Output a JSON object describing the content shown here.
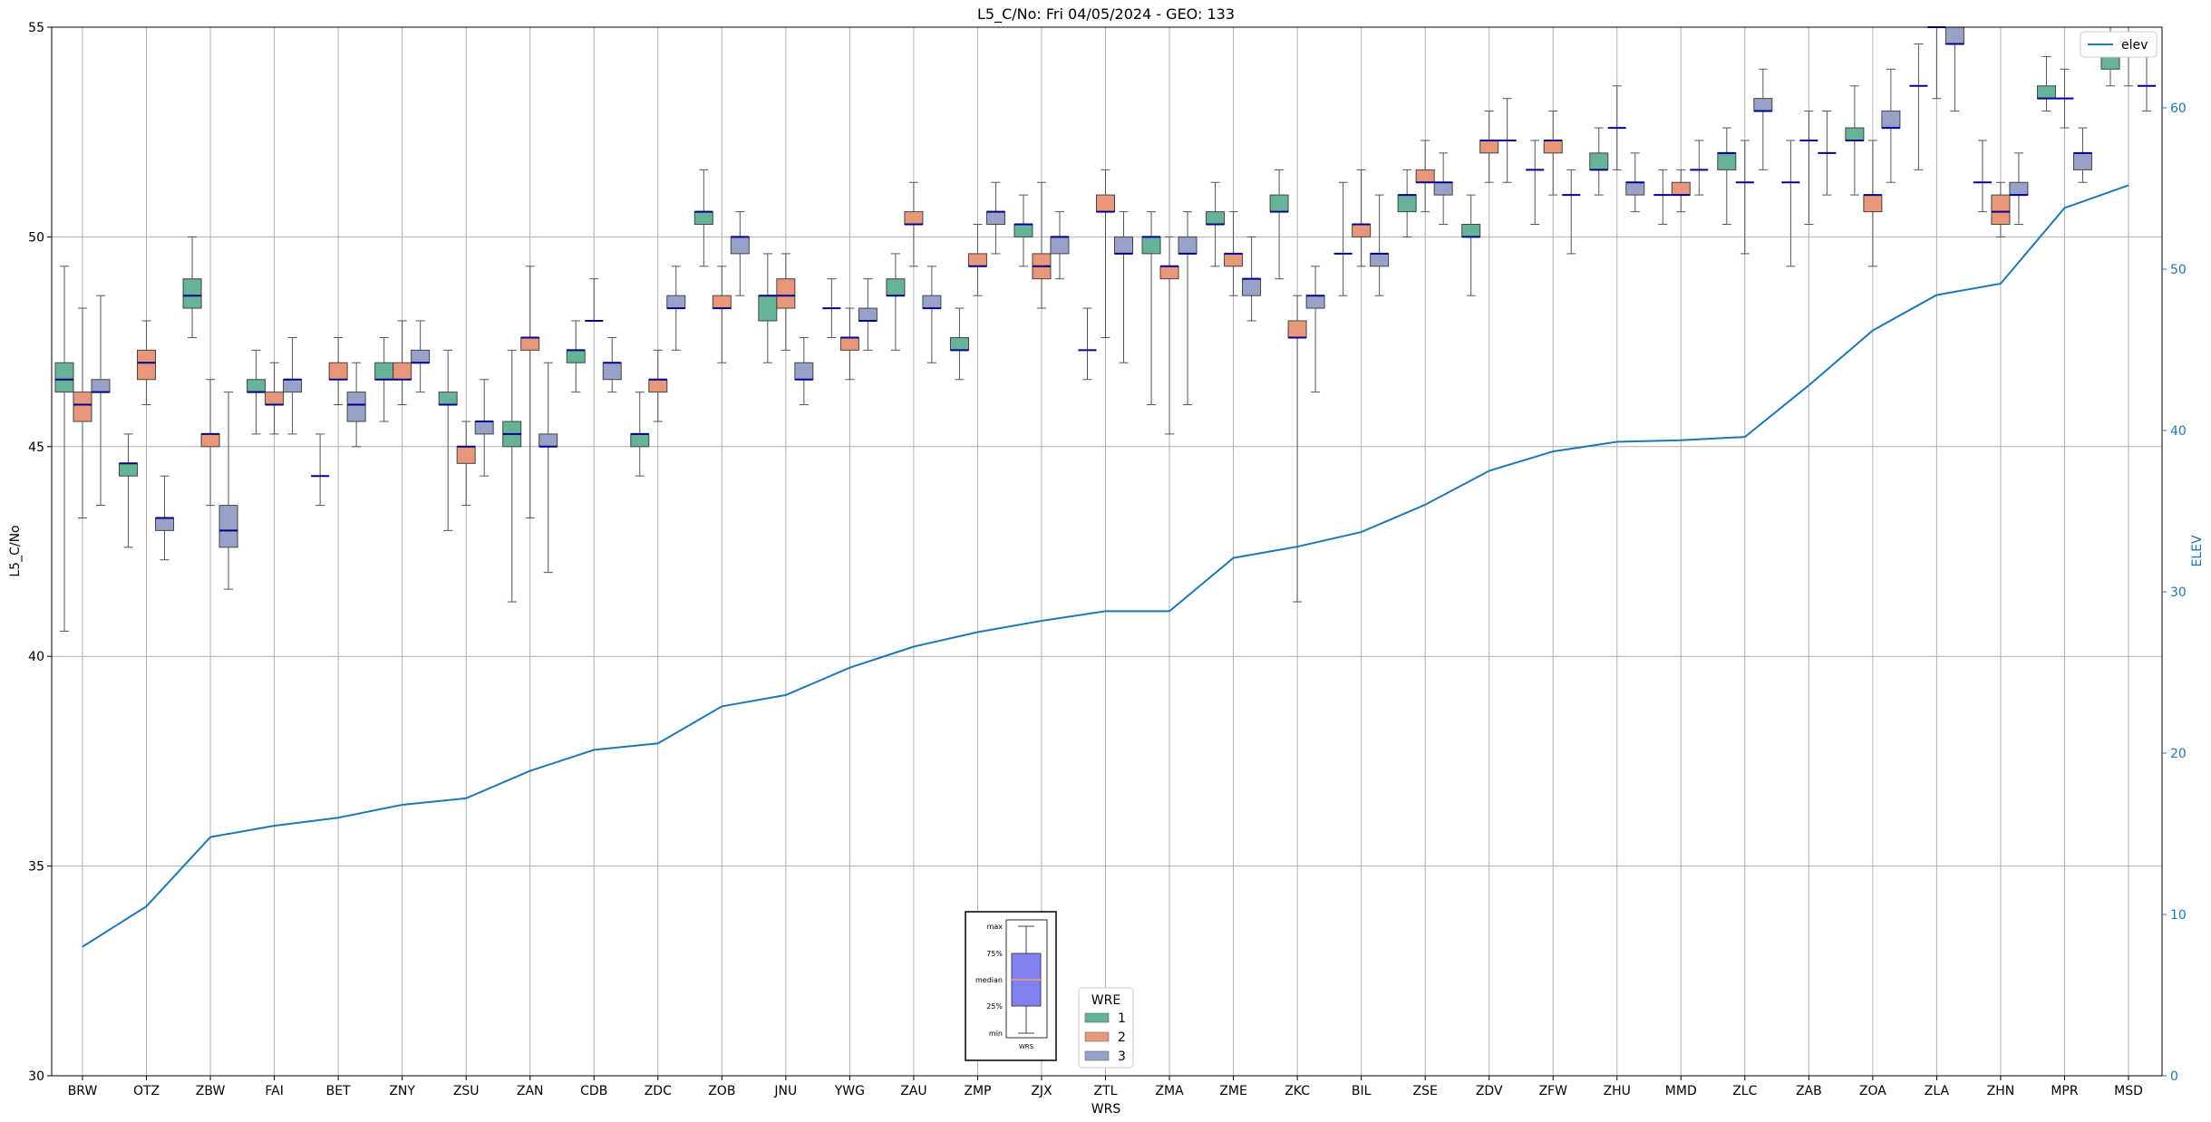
{
  "chart_data": {
    "type": "box",
    "title": "L5_C/No: Fri 04/05/2024 - GEO: 133",
    "xlabel": "WRS",
    "ylabel": "L5_C/No",
    "y2label": "ELEV",
    "ylim": [
      30,
      55
    ],
    "y2lim": [
      0,
      65
    ],
    "yticks": [
      30,
      35,
      40,
      45,
      50,
      55
    ],
    "y2ticks": [
      0,
      10,
      20,
      30,
      40,
      50,
      60
    ],
    "grid": true,
    "categories": [
      "BRW",
      "OTZ",
      "ZBW",
      "FAI",
      "BET",
      "ZNY",
      "ZSU",
      "ZAN",
      "CDB",
      "ZDC",
      "ZOB",
      "JNU",
      "YWG",
      "ZAU",
      "ZMP",
      "ZJX",
      "ZTL",
      "ZMA",
      "ZME",
      "ZKC",
      "BIL",
      "ZSE",
      "ZDV",
      "ZFW",
      "ZHU",
      "MMD",
      "ZLC",
      "ZAB",
      "ZOA",
      "ZLA",
      "ZHN",
      "MPR",
      "MSD"
    ],
    "legend": {
      "title": "WRE",
      "position": "bottom-center",
      "entries": [
        {
          "label": "1",
          "color": "#66b39a"
        },
        {
          "label": "2",
          "color": "#e8977a"
        },
        {
          "label": "3",
          "color": "#98a2c8"
        }
      ]
    },
    "elev_legend": {
      "label": "elev",
      "color": "#1f77b4",
      "position": "top-right"
    },
    "key_inset": {
      "labels": [
        "max",
        "75%",
        "median",
        "25%",
        "min"
      ],
      "caption": "WRS",
      "fill": "#8080f0"
    },
    "median_color": "#00008b",
    "elev_series": {
      "name": "elev",
      "color": "#1f77b4",
      "values": [
        8,
        10.5,
        14.8,
        15.5,
        16,
        16.8,
        17.2,
        18.9,
        20.2,
        20.6,
        22.9,
        23.6,
        25.3,
        26.6,
        27.5,
        28.2,
        28.8,
        28.8,
        32.1,
        32.8,
        33.7,
        35.4,
        37.5,
        38.7,
        39.3,
        39.4,
        39.6,
        42.8,
        46.2,
        48.4,
        49.1,
        53.8,
        55.2
      ]
    },
    "boxes": [
      {
        "wrs": "BRW",
        "wre": 1,
        "min": 40.6,
        "q1": 46.3,
        "median": 46.6,
        "q3": 47.0,
        "max": 49.3
      },
      {
        "wrs": "BRW",
        "wre": 2,
        "min": 43.3,
        "q1": 45.6,
        "median": 46.0,
        "q3": 46.3,
        "max": 48.3
      },
      {
        "wrs": "BRW",
        "wre": 3,
        "min": 43.6,
        "q1": 46.3,
        "median": 46.3,
        "q3": 46.6,
        "max": 48.6
      },
      {
        "wrs": "OTZ",
        "wre": 1,
        "min": 42.6,
        "q1": 44.3,
        "median": 44.6,
        "q3": 44.6,
        "max": 45.3
      },
      {
        "wrs": "OTZ",
        "wre": 2,
        "min": 46.0,
        "q1": 46.6,
        "median": 47.0,
        "q3": 47.3,
        "max": 48.0
      },
      {
        "wrs": "OTZ",
        "wre": 3,
        "min": 42.3,
        "q1": 43.0,
        "median": 43.3,
        "q3": 43.3,
        "max": 44.3
      },
      {
        "wrs": "ZBW",
        "wre": 1,
        "min": 47.6,
        "q1": 48.3,
        "median": 48.6,
        "q3": 49.0,
        "max": 50.0
      },
      {
        "wrs": "ZBW",
        "wre": 2,
        "min": 43.6,
        "q1": 45.0,
        "median": 45.3,
        "q3": 45.3,
        "max": 46.6
      },
      {
        "wrs": "ZBW",
        "wre": 3,
        "min": 41.6,
        "q1": 42.6,
        "median": 43.0,
        "q3": 43.6,
        "max": 46.3
      },
      {
        "wrs": "FAI",
        "wre": 1,
        "min": 45.3,
        "q1": 46.3,
        "median": 46.3,
        "q3": 46.6,
        "max": 47.3
      },
      {
        "wrs": "FAI",
        "wre": 2,
        "min": 45.3,
        "q1": 46.0,
        "median": 46.0,
        "q3": 46.3,
        "max": 47.0
      },
      {
        "wrs": "FAI",
        "wre": 3,
        "min": 45.3,
        "q1": 46.3,
        "median": 46.6,
        "q3": 46.6,
        "max": 47.6
      },
      {
        "wrs": "BET",
        "wre": 1,
        "min": 43.6,
        "q1": 44.3,
        "median": 44.3,
        "q3": 44.3,
        "max": 45.3
      },
      {
        "wrs": "BET",
        "wre": 2,
        "min": 46.0,
        "q1": 46.6,
        "median": 46.6,
        "q3": 47.0,
        "max": 47.6
      },
      {
        "wrs": "BET",
        "wre": 3,
        "min": 45.0,
        "q1": 45.6,
        "median": 46.0,
        "q3": 46.3,
        "max": 47.0
      },
      {
        "wrs": "ZNY",
        "wre": 1,
        "min": 45.6,
        "q1": 46.6,
        "median": 46.6,
        "q3": 47.0,
        "max": 47.6
      },
      {
        "wrs": "ZNY",
        "wre": 2,
        "min": 46.0,
        "q1": 46.6,
        "median": 46.6,
        "q3": 47.0,
        "max": 48.0
      },
      {
        "wrs": "ZNY",
        "wre": 3,
        "min": 46.3,
        "q1": 47.0,
        "median": 47.0,
        "q3": 47.3,
        "max": 48.0
      },
      {
        "wrs": "ZSU",
        "wre": 1,
        "min": 43.0,
        "q1": 46.0,
        "median": 46.0,
        "q3": 46.3,
        "max": 47.3
      },
      {
        "wrs": "ZSU",
        "wre": 2,
        "min": 43.6,
        "q1": 44.6,
        "median": 45.0,
        "q3": 45.0,
        "max": 45.6
      },
      {
        "wrs": "ZSU",
        "wre": 3,
        "min": 44.3,
        "q1": 45.3,
        "median": 45.6,
        "q3": 45.6,
        "max": 46.6
      },
      {
        "wrs": "ZAN",
        "wre": 1,
        "min": 41.3,
        "q1": 45.0,
        "median": 45.3,
        "q3": 45.6,
        "max": 47.3
      },
      {
        "wrs": "ZAN",
        "wre": 2,
        "min": 43.3,
        "q1": 47.3,
        "median": 47.6,
        "q3": 47.6,
        "max": 49.3
      },
      {
        "wrs": "ZAN",
        "wre": 3,
        "min": 42.0,
        "q1": 45.0,
        "median": 45.0,
        "q3": 45.3,
        "max": 47.0
      },
      {
        "wrs": "CDB",
        "wre": 1,
        "min": 46.3,
        "q1": 47.0,
        "median": 47.3,
        "q3": 47.3,
        "max": 48.0
      },
      {
        "wrs": "CDB",
        "wre": 2,
        "min": 48.0,
        "q1": 48.0,
        "median": 48.0,
        "q3": 48.0,
        "max": 49.0
      },
      {
        "wrs": "CDB",
        "wre": 3,
        "min": 46.3,
        "q1": 46.6,
        "median": 47.0,
        "q3": 47.0,
        "max": 47.6
      },
      {
        "wrs": "ZDC",
        "wre": 1,
        "min": 44.3,
        "q1": 45.0,
        "median": 45.3,
        "q3": 45.3,
        "max": 46.3
      },
      {
        "wrs": "ZDC",
        "wre": 2,
        "min": 45.6,
        "q1": 46.3,
        "median": 46.6,
        "q3": 46.6,
        "max": 47.3
      },
      {
        "wrs": "ZDC",
        "wre": 3,
        "min": 47.3,
        "q1": 48.3,
        "median": 48.3,
        "q3": 48.6,
        "max": 49.3
      },
      {
        "wrs": "ZOB",
        "wre": 1,
        "min": 49.3,
        "q1": 50.3,
        "median": 50.6,
        "q3": 50.6,
        "max": 51.6
      },
      {
        "wrs": "ZOB",
        "wre": 2,
        "min": 47.0,
        "q1": 48.3,
        "median": 48.3,
        "q3": 48.6,
        "max": 49.3
      },
      {
        "wrs": "ZOB",
        "wre": 3,
        "min": 48.6,
        "q1": 49.6,
        "median": 50.0,
        "q3": 50.0,
        "max": 50.6
      },
      {
        "wrs": "JNU",
        "wre": 1,
        "min": 47.0,
        "q1": 48.0,
        "median": 48.6,
        "q3": 48.6,
        "max": 49.6
      },
      {
        "wrs": "JNU",
        "wre": 2,
        "min": 47.3,
        "q1": 48.3,
        "median": 48.6,
        "q3": 49.0,
        "max": 49.6
      },
      {
        "wrs": "JNU",
        "wre": 3,
        "min": 46.0,
        "q1": 46.6,
        "median": 46.6,
        "q3": 47.0,
        "max": 47.6
      },
      {
        "wrs": "YWG",
        "wre": 1,
        "min": 47.6,
        "q1": 48.3,
        "median": 48.3,
        "q3": 48.3,
        "max": 49.0
      },
      {
        "wrs": "YWG",
        "wre": 2,
        "min": 46.6,
        "q1": 47.3,
        "median": 47.6,
        "q3": 47.6,
        "max": 48.3
      },
      {
        "wrs": "YWG",
        "wre": 3,
        "min": 47.3,
        "q1": 48.0,
        "median": 48.0,
        "q3": 48.3,
        "max": 49.0
      },
      {
        "wrs": "ZAU",
        "wre": 1,
        "min": 47.3,
        "q1": 48.6,
        "median": 48.6,
        "q3": 49.0,
        "max": 49.6
      },
      {
        "wrs": "ZAU",
        "wre": 2,
        "min": 49.3,
        "q1": 50.3,
        "median": 50.3,
        "q3": 50.6,
        "max": 51.3
      },
      {
        "wrs": "ZAU",
        "wre": 3,
        "min": 47.0,
        "q1": 48.3,
        "median": 48.3,
        "q3": 48.6,
        "max": 49.3
      },
      {
        "wrs": "ZMP",
        "wre": 1,
        "min": 46.6,
        "q1": 47.3,
        "median": 47.3,
        "q3": 47.6,
        "max": 48.3
      },
      {
        "wrs": "ZMP",
        "wre": 2,
        "min": 48.6,
        "q1": 49.3,
        "median": 49.3,
        "q3": 49.6,
        "max": 50.3
      },
      {
        "wrs": "ZMP",
        "wre": 3,
        "min": 49.6,
        "q1": 50.3,
        "median": 50.6,
        "q3": 50.6,
        "max": 51.3
      },
      {
        "wrs": "ZJX",
        "wre": 1,
        "min": 49.3,
        "q1": 50.0,
        "median": 50.3,
        "q3": 50.3,
        "max": 51.0
      },
      {
        "wrs": "ZJX",
        "wre": 2,
        "min": 48.3,
        "q1": 49.0,
        "median": 49.3,
        "q3": 49.6,
        "max": 51.3
      },
      {
        "wrs": "ZJX",
        "wre": 3,
        "min": 49.0,
        "q1": 49.6,
        "median": 50.0,
        "q3": 50.0,
        "max": 50.6
      },
      {
        "wrs": "ZTL",
        "wre": 1,
        "min": 46.6,
        "q1": 47.3,
        "median": 47.3,
        "q3": 47.3,
        "max": 48.3
      },
      {
        "wrs": "ZTL",
        "wre": 2,
        "min": 47.6,
        "q1": 50.6,
        "median": 50.6,
        "q3": 51.0,
        "max": 51.6
      },
      {
        "wrs": "ZTL",
        "wre": 3,
        "min": 47.0,
        "q1": 49.6,
        "median": 49.6,
        "q3": 50.0,
        "max": 50.6
      },
      {
        "wrs": "ZMA",
        "wre": 1,
        "min": 46.0,
        "q1": 49.6,
        "median": 50.0,
        "q3": 50.0,
        "max": 50.6
      },
      {
        "wrs": "ZMA",
        "wre": 2,
        "min": 45.3,
        "q1": 49.0,
        "median": 49.3,
        "q3": 49.3,
        "max": 50.0
      },
      {
        "wrs": "ZMA",
        "wre": 3,
        "min": 46.0,
        "q1": 49.6,
        "median": 49.6,
        "q3": 50.0,
        "max": 50.6
      },
      {
        "wrs": "ZME",
        "wre": 1,
        "min": 49.3,
        "q1": 50.3,
        "median": 50.3,
        "q3": 50.6,
        "max": 51.3
      },
      {
        "wrs": "ZME",
        "wre": 2,
        "min": 48.6,
        "q1": 49.3,
        "median": 49.6,
        "q3": 49.6,
        "max": 50.6
      },
      {
        "wrs": "ZME",
        "wre": 3,
        "min": 48.0,
        "q1": 48.6,
        "median": 49.0,
        "q3": 49.0,
        "max": 50.0
      },
      {
        "wrs": "ZKC",
        "wre": 1,
        "min": 49.0,
        "q1": 50.6,
        "median": 50.6,
        "q3": 51.0,
        "max": 51.6
      },
      {
        "wrs": "ZKC",
        "wre": 2,
        "min": 41.3,
        "q1": 47.6,
        "median": 47.6,
        "q3": 48.0,
        "max": 48.6
      },
      {
        "wrs": "ZKC",
        "wre": 3,
        "min": 46.3,
        "q1": 48.3,
        "median": 48.6,
        "q3": 48.6,
        "max": 49.3
      },
      {
        "wrs": "BIL",
        "wre": 1,
        "min": 48.6,
        "q1": 49.6,
        "median": 49.6,
        "q3": 49.6,
        "max": 51.3
      },
      {
        "wrs": "BIL",
        "wre": 2,
        "min": 49.3,
        "q1": 50.0,
        "median": 50.3,
        "q3": 50.3,
        "max": 51.6
      },
      {
        "wrs": "BIL",
        "wre": 3,
        "min": 48.6,
        "q1": 49.3,
        "median": 49.6,
        "q3": 49.6,
        "max": 51.0
      },
      {
        "wrs": "ZSE",
        "wre": 1,
        "min": 50.0,
        "q1": 50.6,
        "median": 51.0,
        "q3": 51.0,
        "max": 51.6
      },
      {
        "wrs": "ZSE",
        "wre": 2,
        "min": 50.6,
        "q1": 51.3,
        "median": 51.3,
        "q3": 51.6,
        "max": 52.3
      },
      {
        "wrs": "ZSE",
        "wre": 3,
        "min": 50.3,
        "q1": 51.0,
        "median": 51.3,
        "q3": 51.3,
        "max": 52.0
      },
      {
        "wrs": "ZDV",
        "wre": 1,
        "min": 48.6,
        "q1": 50.0,
        "median": 50.0,
        "q3": 50.3,
        "max": 51.0
      },
      {
        "wrs": "ZDV",
        "wre": 2,
        "min": 51.3,
        "q1": 52.0,
        "median": 52.3,
        "q3": 52.3,
        "max": 53.0
      },
      {
        "wrs": "ZDV",
        "wre": 3,
        "min": 51.3,
        "q1": 52.3,
        "median": 52.3,
        "q3": 52.3,
        "max": 53.3
      },
      {
        "wrs": "ZFW",
        "wre": 1,
        "min": 50.3,
        "q1": 51.6,
        "median": 51.6,
        "q3": 51.6,
        "max": 52.3
      },
      {
        "wrs": "ZFW",
        "wre": 2,
        "min": 51.0,
        "q1": 52.0,
        "median": 52.3,
        "q3": 52.3,
        "max": 53.0
      },
      {
        "wrs": "ZFW",
        "wre": 3,
        "min": 49.6,
        "q1": 51.0,
        "median": 51.0,
        "q3": 51.0,
        "max": 51.6
      },
      {
        "wrs": "ZHU",
        "wre": 1,
        "min": 51.0,
        "q1": 51.6,
        "median": 51.6,
        "q3": 52.0,
        "max": 52.6
      },
      {
        "wrs": "ZHU",
        "wre": 2,
        "min": 51.6,
        "q1": 52.6,
        "median": 52.6,
        "q3": 52.6,
        "max": 53.6
      },
      {
        "wrs": "ZHU",
        "wre": 3,
        "min": 50.6,
        "q1": 51.0,
        "median": 51.3,
        "q3": 51.3,
        "max": 52.0
      },
      {
        "wrs": "MMD",
        "wre": 1,
        "min": 50.3,
        "q1": 51.0,
        "median": 51.0,
        "q3": 51.0,
        "max": 51.6
      },
      {
        "wrs": "MMD",
        "wre": 2,
        "min": 50.6,
        "q1": 51.0,
        "median": 51.0,
        "q3": 51.3,
        "max": 51.6
      },
      {
        "wrs": "MMD",
        "wre": 3,
        "min": 51.0,
        "q1": 51.6,
        "median": 51.6,
        "q3": 51.6,
        "max": 52.3
      },
      {
        "wrs": "ZLC",
        "wre": 1,
        "min": 50.3,
        "q1": 51.6,
        "median": 52.0,
        "q3": 52.0,
        "max": 52.6
      },
      {
        "wrs": "ZLC",
        "wre": 2,
        "min": 49.6,
        "q1": 51.3,
        "median": 51.3,
        "q3": 51.3,
        "max": 52.3
      },
      {
        "wrs": "ZLC",
        "wre": 3,
        "min": 51.6,
        "q1": 53.0,
        "median": 53.0,
        "q3": 53.3,
        "max": 54.0
      },
      {
        "wrs": "ZAB",
        "wre": 1,
        "min": 49.3,
        "q1": 51.3,
        "median": 51.3,
        "q3": 51.3,
        "max": 52.3
      },
      {
        "wrs": "ZAB",
        "wre": 2,
        "min": 50.3,
        "q1": 52.3,
        "median": 52.3,
        "q3": 52.3,
        "max": 53.0
      },
      {
        "wrs": "ZAB",
        "wre": 3,
        "min": 51.0,
        "q1": 52.0,
        "median": 52.0,
        "q3": 52.0,
        "max": 53.0
      },
      {
        "wrs": "ZOA",
        "wre": 1,
        "min": 51.0,
        "q1": 52.3,
        "median": 52.3,
        "q3": 52.6,
        "max": 53.6
      },
      {
        "wrs": "ZOA",
        "wre": 2,
        "min": 49.3,
        "q1": 50.6,
        "median": 51.0,
        "q3": 51.0,
        "max": 52.3
      },
      {
        "wrs": "ZOA",
        "wre": 3,
        "min": 51.3,
        "q1": 52.6,
        "median": 52.6,
        "q3": 53.0,
        "max": 54.0
      },
      {
        "wrs": "ZLA",
        "wre": 1,
        "min": 51.6,
        "q1": 53.6,
        "median": 53.6,
        "q3": 53.6,
        "max": 54.6
      },
      {
        "wrs": "ZLA",
        "wre": 2,
        "min": 53.3,
        "q1": 55.0,
        "median": 55.0,
        "q3": 55.0,
        "max": 55.0
      },
      {
        "wrs": "ZLA",
        "wre": 3,
        "min": 53.0,
        "q1": 54.6,
        "median": 54.6,
        "q3": 55.0,
        "max": 55.0
      },
      {
        "wrs": "ZHN",
        "wre": 1,
        "min": 50.6,
        "q1": 51.3,
        "median": 51.3,
        "q3": 51.3,
        "max": 52.3
      },
      {
        "wrs": "ZHN",
        "wre": 2,
        "min": 50.0,
        "q1": 50.3,
        "median": 50.6,
        "q3": 51.0,
        "max": 51.3
      },
      {
        "wrs": "ZHN",
        "wre": 3,
        "min": 50.3,
        "q1": 51.0,
        "median": 51.0,
        "q3": 51.3,
        "max": 52.0
      },
      {
        "wrs": "MPR",
        "wre": 1,
        "min": 53.0,
        "q1": 53.3,
        "median": 53.3,
        "q3": 53.6,
        "max": 54.3
      },
      {
        "wrs": "MPR",
        "wre": 2,
        "min": 52.6,
        "q1": 53.3,
        "median": 53.3,
        "q3": 53.3,
        "max": 54.0
      },
      {
        "wrs": "MPR",
        "wre": 3,
        "min": 51.3,
        "q1": 51.6,
        "median": 52.0,
        "q3": 52.0,
        "max": 52.6
      },
      {
        "wrs": "MSD",
        "wre": 1,
        "min": 53.6,
        "q1": 54.0,
        "median": 54.3,
        "q3": 54.3,
        "max": 55.0
      },
      {
        "wrs": "MSD",
        "wre": 2,
        "min": 53.6,
        "q1": 54.6,
        "median": 54.6,
        "q3": 54.6,
        "max": 55.0
      },
      {
        "wrs": "MSD",
        "wre": 3,
        "min": 53.0,
        "q1": 53.6,
        "median": 53.6,
        "q3": 53.6,
        "max": 54.6
      }
    ]
  }
}
